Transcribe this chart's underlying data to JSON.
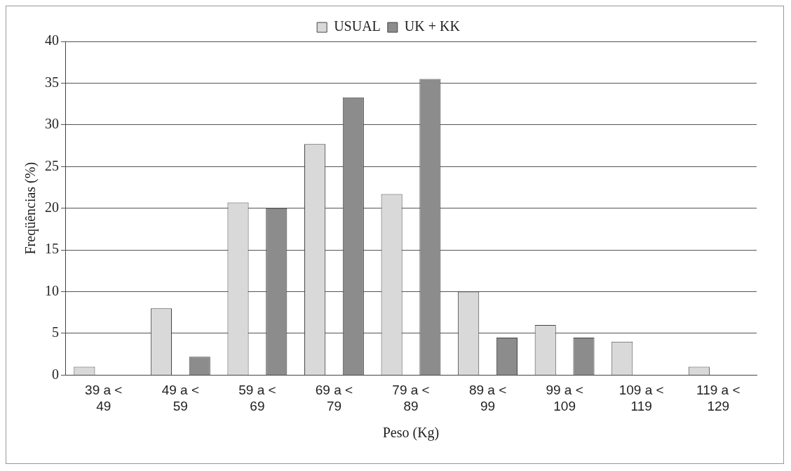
{
  "chart_data": {
    "type": "bar",
    "xlabel": "Peso (Kg)",
    "ylabel": "Freqüências (%)",
    "categories": [
      "39 a < 49",
      "49 a < 59",
      "59 a < 69",
      "69 a < 79",
      "79 a < 89",
      "89 a < 99",
      "99 a < 109",
      "109 a < 119",
      "119 a < 129"
    ],
    "series": [
      {
        "name": "USUAL",
        "color": "#d9d9d9",
        "values": [
          1,
          8,
          20.7,
          27.7,
          21.7,
          10,
          6,
          4,
          1
        ]
      },
      {
        "name": "UK + KK",
        "color": "#8c8c8c",
        "values": [
          null,
          2.2,
          20,
          33.3,
          35.5,
          4.5,
          4.5,
          null,
          null
        ]
      }
    ],
    "ylim": [
      0,
      40
    ],
    "yticks": [
      0,
      5,
      10,
      15,
      20,
      25,
      30,
      35,
      40
    ],
    "grid": "y",
    "legend": "top"
  }
}
